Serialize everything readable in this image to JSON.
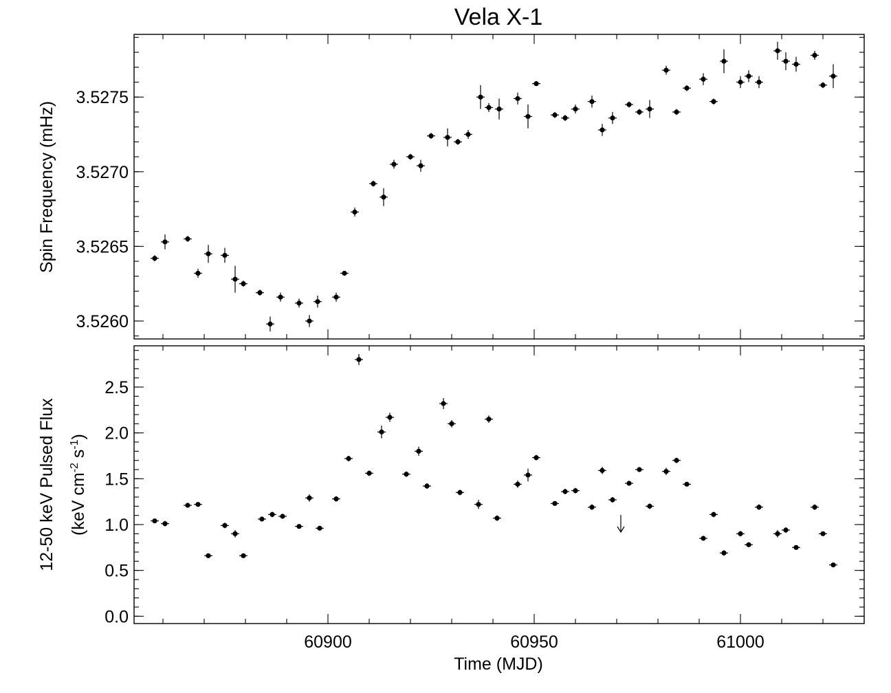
{
  "chart_data": [
    {
      "type": "scatter",
      "title": "Vela X-1",
      "ylabel": "Spin Frequency (mHz)",
      "xlabel": "",
      "xlim": [
        60853,
        61030
      ],
      "ylim": [
        3.52588,
        3.52792
      ],
      "yticks": [
        3.526,
        3.5265,
        3.527,
        3.5275
      ],
      "ytick_labels": [
        "3.5260",
        "3.5265",
        "3.5270",
        "3.5275"
      ],
      "grid": false,
      "series": [
        {
          "x": [
            60858,
            60860.5,
            60866,
            60868.5,
            60871,
            60875,
            60877.5,
            60879.5,
            60883.5,
            60886,
            60888.5,
            60893,
            60895.5,
            60897.5,
            60902,
            60904,
            60906.5,
            60911,
            60913.5,
            60916,
            60920,
            60922.5,
            60925,
            60929,
            60931.5,
            60934,
            60937,
            60939,
            60941.5,
            60946,
            60948.5,
            60950.5,
            60955,
            60957.5,
            60960,
            60964,
            60966.5,
            60969,
            60973,
            60975.5,
            60978,
            60982,
            60984.5,
            60987,
            60991,
            60993.5,
            60996,
            61000,
            61002,
            61004.5,
            61009,
            61011,
            61013.5,
            61018,
            61020,
            61022.5
          ],
          "y": [
            3.52642,
            3.52653,
            3.52655,
            3.52632,
            3.52645,
            3.52644,
            3.52628,
            3.52625,
            3.52619,
            3.52598,
            3.52616,
            3.52612,
            3.526,
            3.52613,
            3.52616,
            3.52632,
            3.52673,
            3.52692,
            3.52683,
            3.52705,
            3.5271,
            3.52704,
            3.52724,
            3.52723,
            3.5272,
            3.52725,
            3.5275,
            3.52743,
            3.52742,
            3.52749,
            3.52737,
            3.52759,
            3.52738,
            3.52736,
            3.52742,
            3.52747,
            3.52728,
            3.52736,
            3.52745,
            3.5274,
            3.52742,
            3.52768,
            3.5274,
            3.52756,
            3.52762,
            3.52747,
            3.52774,
            3.5276,
            3.52764,
            3.5276,
            3.52781,
            3.52774,
            3.52772,
            3.52778,
            3.52758,
            3.52764
          ],
          "yerr": [
            2e-05,
            5e-05,
            2e-05,
            3e-05,
            6e-05,
            5e-05,
            9e-05,
            2e-05,
            2e-05,
            5e-05,
            3e-05,
            3e-05,
            4e-05,
            4e-05,
            3e-05,
            1e-05,
            3e-05,
            2e-05,
            6e-05,
            3e-05,
            2e-05,
            4e-05,
            2e-05,
            6e-05,
            2e-05,
            3e-05,
            8e-05,
            3e-05,
            7e-05,
            4e-05,
            8e-05,
            1e-05,
            2e-05,
            2e-05,
            3e-05,
            4e-05,
            4e-05,
            4e-05,
            2e-05,
            2e-05,
            6e-05,
            3e-05,
            2e-05,
            2e-05,
            4e-05,
            2e-05,
            8e-05,
            4e-05,
            4e-05,
            4e-05,
            6e-05,
            6e-05,
            5e-05,
            3e-05,
            2e-05,
            8e-05
          ],
          "xerr": 1.0
        }
      ]
    },
    {
      "type": "scatter",
      "title": "",
      "ylabel": "12-50 keV Pulsed Flux",
      "ylabel_sub": "(keV cm-2 s-1)",
      "ylabel_unit_parts": [
        "(keV cm",
        "-2",
        " s",
        "-1",
        ")"
      ],
      "xlabel": "Time (MJD)",
      "xlim": [
        60853,
        61030
      ],
      "ylim": [
        -0.08,
        2.95
      ],
      "xticks": [
        60900,
        60950,
        61000
      ],
      "xtick_labels": [
        "60900",
        "60950",
        "61000"
      ],
      "yticks": [
        0,
        0.5,
        1,
        1.5,
        2,
        2.5
      ],
      "ytick_labels": [
        "0.0",
        "0.5",
        "1.0",
        "1.5",
        "2.0",
        "2.5"
      ],
      "grid": false,
      "series": [
        {
          "x": [
            60858,
            60860.5,
            60866,
            60868.5,
            60871,
            60875,
            60877.5,
            60879.5,
            60884,
            60886.5,
            60889,
            60893,
            60895.5,
            60898,
            60902,
            60905,
            60907.5,
            60910,
            60913,
            60915,
            60919,
            60922,
            60924,
            60928,
            60930,
            60932,
            60936.5,
            60939,
            60941,
            60946,
            60948.5,
            60950.5,
            60955,
            60957.5,
            60960,
            60964,
            60966.5,
            60969,
            60973,
            60975.5,
            60978,
            60982,
            60984.5,
            60987,
            60991,
            60993.5,
            60996,
            61000,
            61002,
            61004.5,
            61009,
            61011,
            61013.5,
            61018,
            61020,
            61022.5
          ],
          "y": [
            1.04,
            1.01,
            1.21,
            1.22,
            0.66,
            0.99,
            0.9,
            0.66,
            1.06,
            1.11,
            1.09,
            0.98,
            1.29,
            0.96,
            1.28,
            1.72,
            2.8,
            1.56,
            2.01,
            2.17,
            1.55,
            1.8,
            1.42,
            2.32,
            2.1,
            1.35,
            1.22,
            2.15,
            1.07,
            1.44,
            1.54,
            1.73,
            1.23,
            1.36,
            1.37,
            1.19,
            1.59,
            1.27,
            1.45,
            1.6,
            1.2,
            1.58,
            1.7,
            1.44,
            0.85,
            1.11,
            0.69,
            0.9,
            0.78,
            1.19,
            0.9,
            0.94,
            0.75,
            1.19,
            0.9,
            0.56
          ],
          "yerr": [
            0.02,
            0.03,
            0.02,
            0.02,
            0.02,
            0.03,
            0.04,
            0.02,
            0.02,
            0.03,
            0.02,
            0.02,
            0.04,
            0.02,
            0.03,
            0.03,
            0.06,
            0.03,
            0.07,
            0.05,
            0.03,
            0.05,
            0.03,
            0.06,
            0.04,
            0.03,
            0.05,
            0.04,
            0.03,
            0.04,
            0.07,
            0.03,
            0.02,
            0.03,
            0.03,
            0.03,
            0.04,
            0.03,
            0.02,
            0.02,
            0.03,
            0.04,
            0.03,
            0.02,
            0.02,
            0.03,
            0.03,
            0.03,
            0.02,
            0.03,
            0.04,
            0.03,
            0.02,
            0.03,
            0.02,
            0.01
          ],
          "xerr": 1.0
        }
      ],
      "upper_limits": [
        {
          "x": 60971,
          "y": 1.0
        }
      ]
    }
  ]
}
